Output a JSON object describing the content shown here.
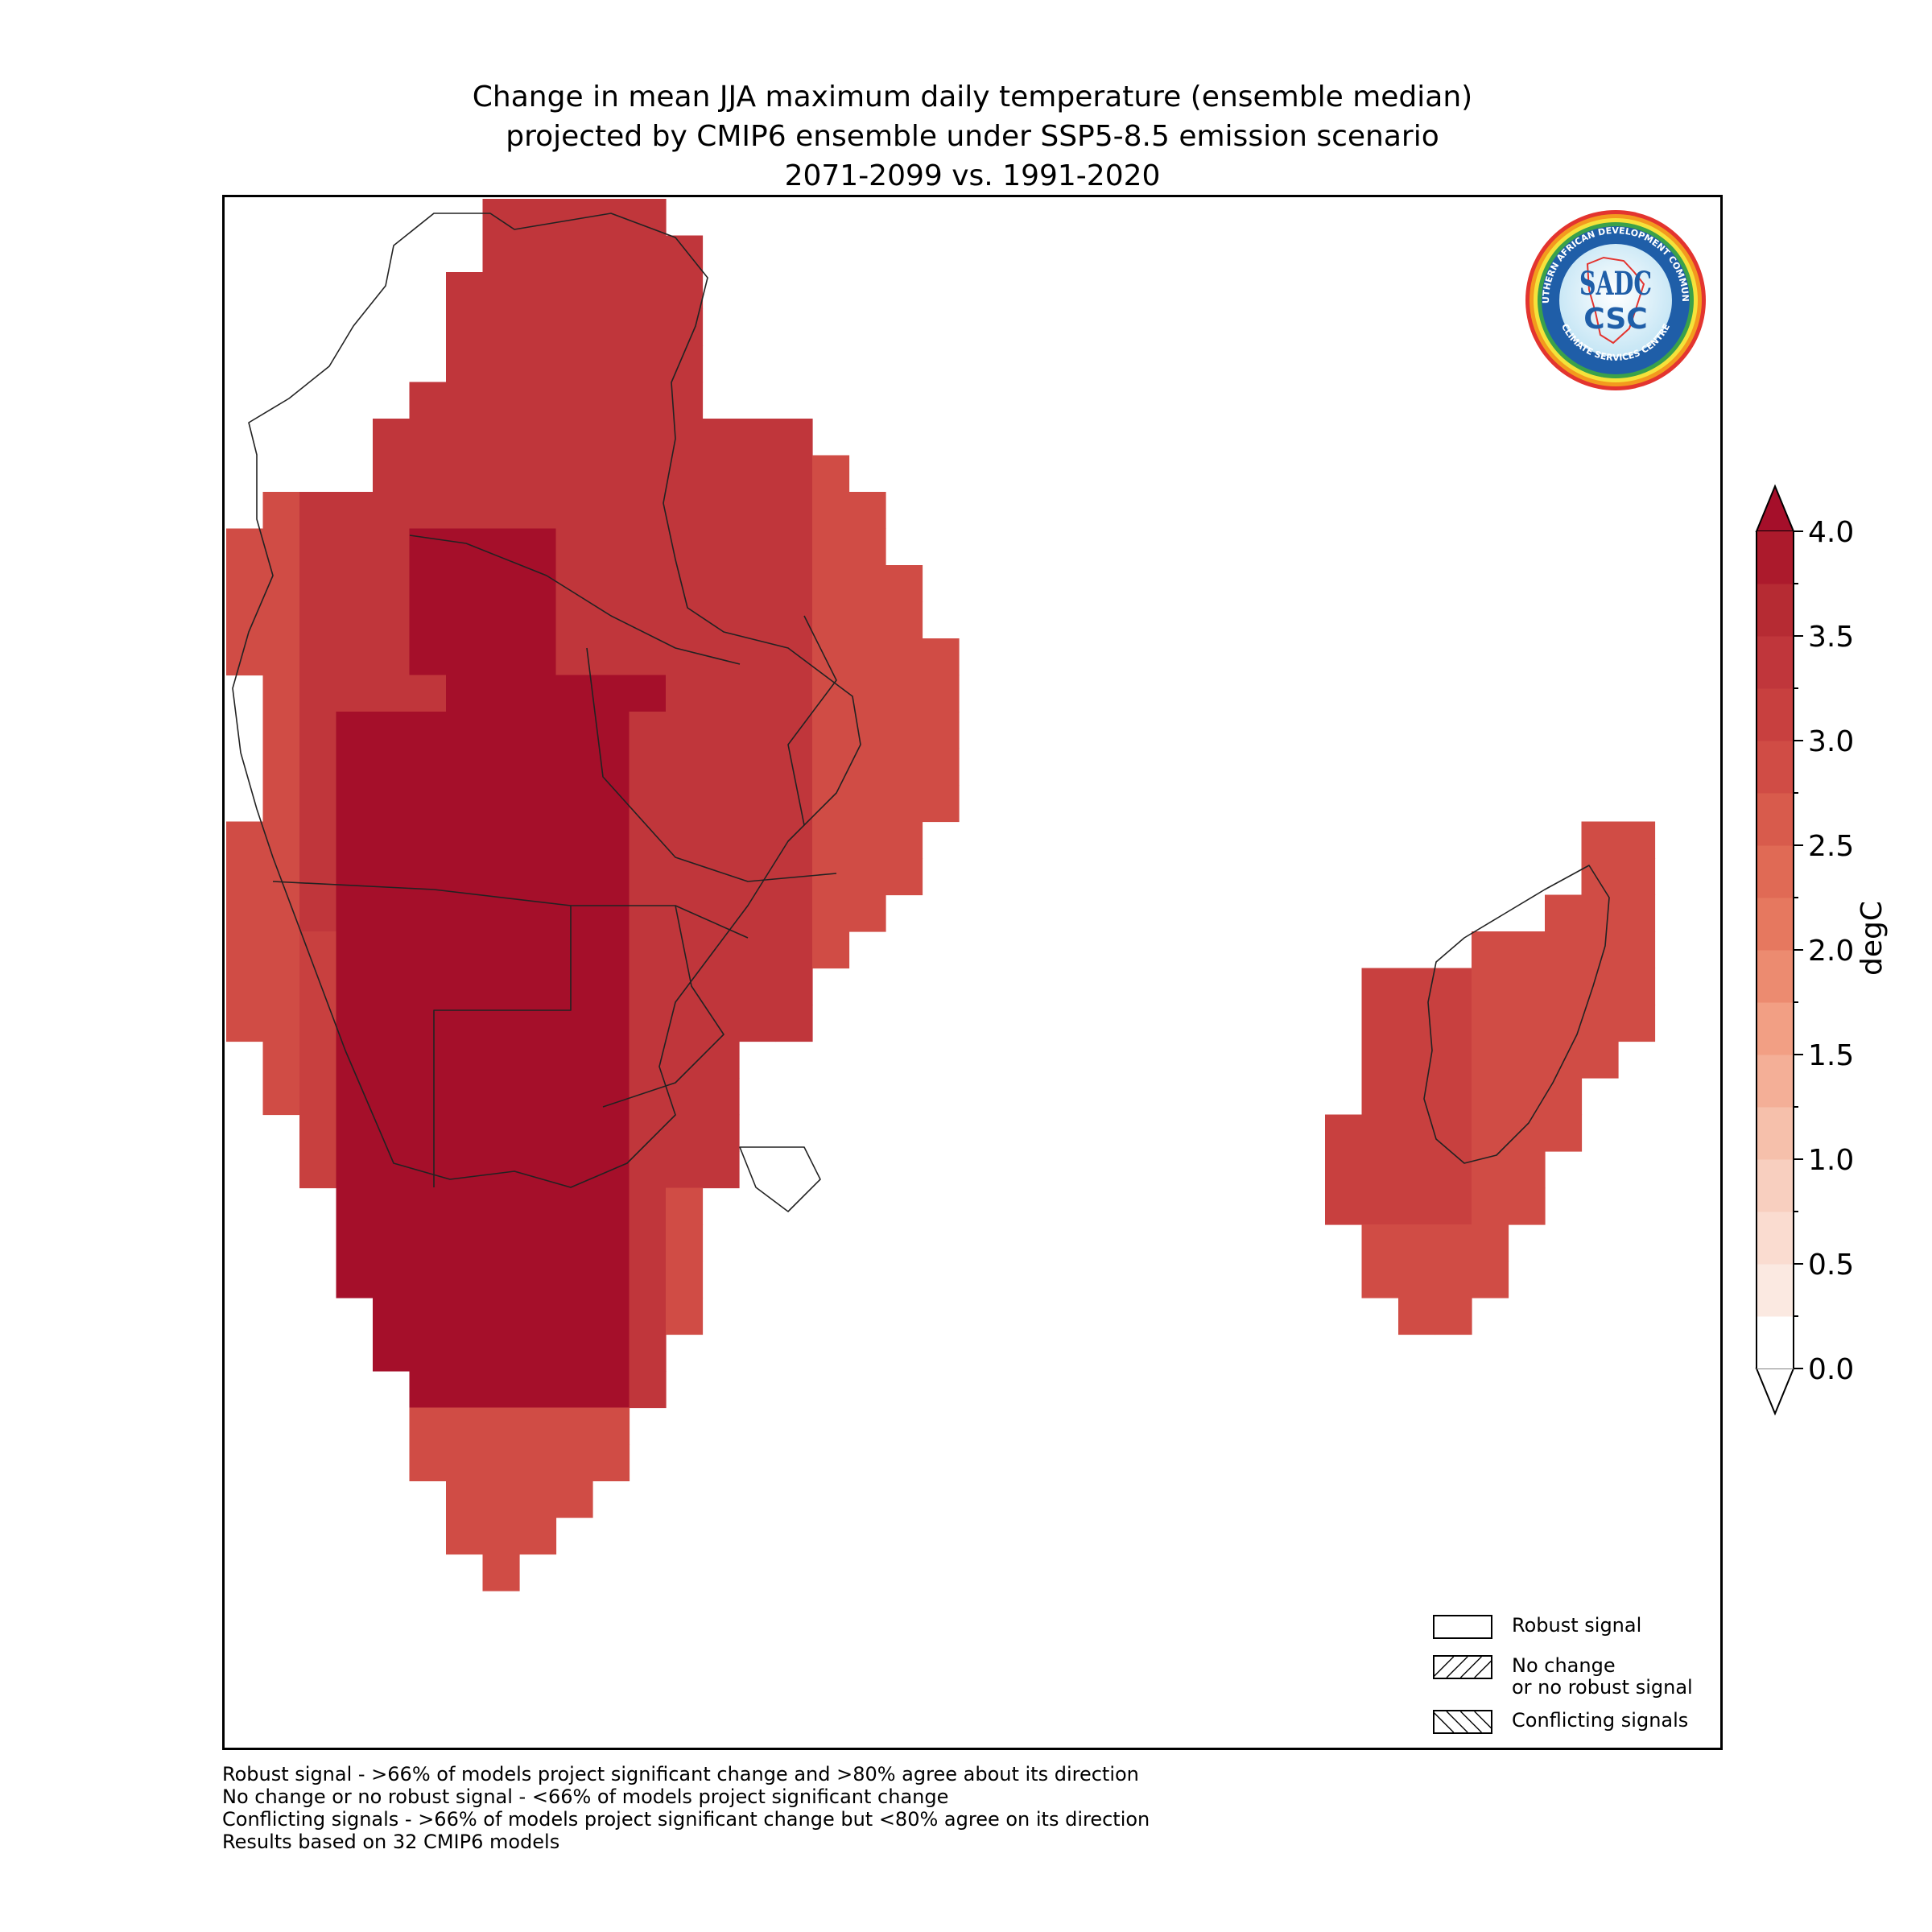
{
  "title": {
    "line1": "Change in mean JJA maximum daily temperature (ensemble median)",
    "line2": "projected by CMIP6 ensemble under SSP5-8.5 emission scenario",
    "line3": "2071-2099 vs. 1991-2020"
  },
  "logo": {
    "ring_text_top": "SOUTHERN AFRICAN DEVELOPMENT COMMUNITY",
    "ring_text_bottom": "CLIMATE SERVICES CENTRE",
    "monogram": "SADC",
    "acronym": "CSC"
  },
  "colorbar": {
    "label": "degC",
    "min": 0.0,
    "max": 4.0,
    "step": 0.25,
    "extend": "both",
    "tick_labels": [
      "0.0",
      "0.5",
      "1.0",
      "1.5",
      "2.0",
      "2.5",
      "3.0",
      "3.5",
      "4.0"
    ],
    "colors": [
      "#ffffff",
      "#fbe9e1",
      "#fadcd0",
      "#f8cfbf",
      "#f6c0ab",
      "#f4af97",
      "#f29f84",
      "#ec8b70",
      "#e6785f",
      "#e06a55",
      "#d85b4c",
      "#d04c45",
      "#c8403f",
      "#c0363b",
      "#b62b33",
      "#ac1a2c"
    ],
    "over_color": "#a50f2a",
    "under_color": "#ffffff"
  },
  "hatch_legend": [
    {
      "pattern": "none",
      "label_lines": [
        "Robust signal"
      ]
    },
    {
      "pattern": "forward-diagonal",
      "label_lines": [
        "No change",
        "or no robust signal"
      ]
    },
    {
      "pattern": "back-diagonal",
      "label_lines": [
        "Conflicting signals"
      ]
    }
  ],
  "footnotes": [
    "Robust signal - >66% of models project significant change and >80% agree about its direction",
    "No change or no robust signal - <66% of models project significant change",
    "Conflicting signals - >66% of models project significant change but <80% agree on its direction",
    "Results based on 32 CMIP6 models"
  ],
  "map": {
    "region": "Southern Africa (SADC) and Madagascar",
    "field": "temperature change degC",
    "pattern": "largest warming (>4.0) over the interior (Namibia, Botswana, Zambia, Zimbabwe, South Africa interior); 3.0-3.75 over DR Congo, Tanzania, Mozambique, Malawi; 2.25-3.0 along coasts and Madagascar"
  }
}
